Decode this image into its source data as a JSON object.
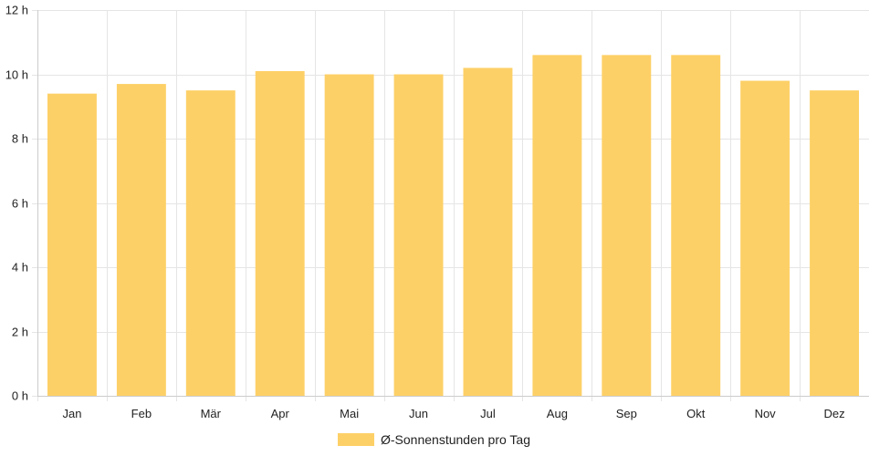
{
  "chart_data": {
    "type": "bar",
    "categories": [
      "Jan",
      "Feb",
      "Mär",
      "Apr",
      "Mai",
      "Jun",
      "Jul",
      "Aug",
      "Sep",
      "Okt",
      "Nov",
      "Dez"
    ],
    "series": [
      {
        "name": "Ø-Sonnenstunden pro Tag",
        "values": [
          9.4,
          9.7,
          9.5,
          10.1,
          10.0,
          10.0,
          10.2,
          10.6,
          10.6,
          10.6,
          9.8,
          9.5
        ]
      }
    ],
    "ylim": [
      0,
      12
    ],
    "y_ticks": [
      0,
      2,
      4,
      6,
      8,
      10,
      12
    ],
    "y_tick_suffix": " h",
    "grid": true,
    "legend_position": "bottom",
    "colors": {
      "bar": "#fdd067",
      "grid": "#e5e5e5",
      "axis": "#cccccc"
    }
  }
}
